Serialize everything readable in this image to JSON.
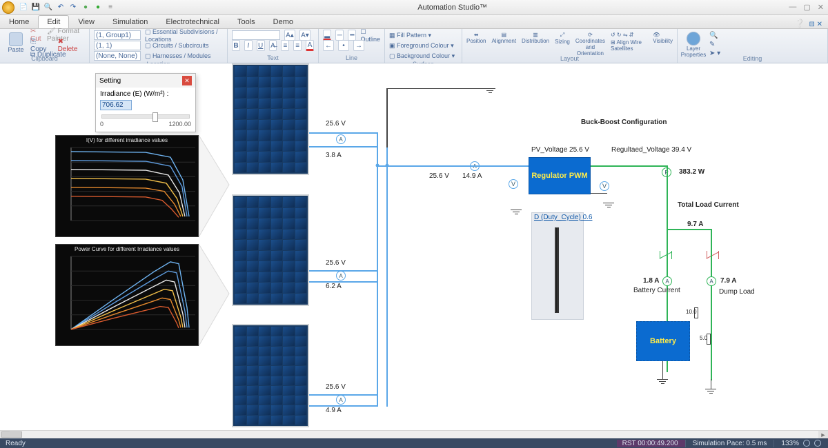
{
  "app": {
    "title": "Automation Studio™"
  },
  "qat": [
    "📄",
    "💾",
    "🔍",
    "↩",
    "↪",
    "•",
    "●",
    "●"
  ],
  "menu": {
    "tabs": [
      "Home",
      "Edit",
      "View",
      "Simulation",
      "Electrotechnical",
      "Tools",
      "Demo"
    ],
    "active": 1
  },
  "ribbon": {
    "clipboard": {
      "paste": "Paste",
      "cut": "Cut",
      "copy": "Copy",
      "delete": "Delete",
      "fmt": "Format Painter",
      "dup": "Duplicate",
      "label": "Clipboard"
    },
    "location": {
      "dd1": "(1, Group1)",
      "dd2": "(1, 1)",
      "dd3": "(None, None)",
      "opt1": "Essential Subdivisions / Locations",
      "opt2": "Circuits / Subcircuits",
      "opt3": "Harnesses / Modules",
      "label": "Location"
    },
    "text": {
      "label": "Text"
    },
    "line": {
      "label": "Line"
    },
    "surface": {
      "fill": "Fill Pattern",
      "fg": "Foreground Colour",
      "bg": "Background Colour",
      "outline": "Outline",
      "label": "Surface"
    },
    "layout": {
      "pos": "Position",
      "align": "Alignment",
      "dist": "Distribution",
      "size": "Sizing",
      "coord": "Coordinates and Orientation",
      "wire": "Align Wire Satellites",
      "vis": "Visibility",
      "label": "Layout"
    },
    "editing": {
      "layer": "Layer Properties",
      "label": "Editing"
    }
  },
  "setting": {
    "title": "Setting",
    "param": "Irradiance (E) (W/m²) :",
    "value": "706.62",
    "min": "0",
    "max": "1200.00"
  },
  "charts": {
    "iv": {
      "title": "I(V) for different irradiance  values",
      "xmax": 30,
      "ymax": 9,
      "series": [
        {
          "color": "#6fb4f2",
          "pts": [
            [
              0,
              8.5
            ],
            [
              18,
              8.4
            ],
            [
              24,
              7.8
            ],
            [
              27,
              5.0
            ],
            [
              28.5,
              0.5
            ]
          ]
        },
        {
          "color": "#5f9de0",
          "pts": [
            [
              0,
              7.4
            ],
            [
              18,
              7.3
            ],
            [
              24,
              6.7
            ],
            [
              26.8,
              4.2
            ],
            [
              28,
              0.5
            ]
          ]
        },
        {
          "color": "#e8e8e8",
          "pts": [
            [
              0,
              6.3
            ],
            [
              18,
              6.2
            ],
            [
              23.5,
              5.6
            ],
            [
              26.2,
              3.4
            ],
            [
              27.5,
              0.5
            ]
          ]
        },
        {
          "color": "#f2c04a",
          "pts": [
            [
              0,
              5.2
            ],
            [
              18,
              5.1
            ],
            [
              23,
              4.6
            ],
            [
              25.6,
              2.7
            ],
            [
              27,
              0.5
            ]
          ]
        },
        {
          "color": "#e68a2e",
          "pts": [
            [
              0,
              4.1
            ],
            [
              18,
              4.0
            ],
            [
              22.5,
              3.6
            ],
            [
              25,
              2.0
            ],
            [
              26.5,
              0.5
            ]
          ]
        },
        {
          "color": "#d85a2e",
          "pts": [
            [
              0,
              3.0
            ],
            [
              18,
              2.9
            ],
            [
              22,
              2.5
            ],
            [
              24.3,
              1.4
            ],
            [
              26,
              0.4
            ]
          ]
        }
      ]
    },
    "pv": {
      "title": "Power Curve for different Irradiance  values",
      "xmax": 30,
      "ymax": 200,
      "series": [
        {
          "color": "#6fb4f2",
          "pts": [
            [
              0,
              0
            ],
            [
              10,
              80
            ],
            [
              20,
              158
            ],
            [
              24,
              185
            ],
            [
              26,
              180
            ],
            [
              28,
              60
            ],
            [
              28.5,
              5
            ]
          ]
        },
        {
          "color": "#5f9de0",
          "pts": [
            [
              0,
              0
            ],
            [
              10,
              70
            ],
            [
              20,
              138
            ],
            [
              23.5,
              160
            ],
            [
              25.5,
              155
            ],
            [
              27.5,
              50
            ],
            [
              28,
              5
            ]
          ]
        },
        {
          "color": "#e8e8e8",
          "pts": [
            [
              0,
              0
            ],
            [
              10,
              60
            ],
            [
              20,
              118
            ],
            [
              23,
              135
            ],
            [
              25,
              130
            ],
            [
              27,
              42
            ],
            [
              27.5,
              5
            ]
          ]
        },
        {
          "color": "#f2c04a",
          "pts": [
            [
              0,
              0
            ],
            [
              10,
              50
            ],
            [
              20,
              98
            ],
            [
              22.5,
              110
            ],
            [
              24.5,
              106
            ],
            [
              26.5,
              34
            ],
            [
              27,
              5
            ]
          ]
        },
        {
          "color": "#e68a2e",
          "pts": [
            [
              0,
              0
            ],
            [
              10,
              40
            ],
            [
              20,
              78
            ],
            [
              22,
              86
            ],
            [
              24,
              82
            ],
            [
              26,
              26
            ],
            [
              26.5,
              5
            ]
          ]
        },
        {
          "color": "#d85a2e",
          "pts": [
            [
              0,
              0
            ],
            [
              10,
              30
            ],
            [
              20,
              58
            ],
            [
              21.5,
              63
            ],
            [
              23.5,
              60
            ],
            [
              25.5,
              18
            ],
            [
              26,
              4
            ]
          ]
        }
      ]
    }
  },
  "diagram": {
    "pv_out": [
      {
        "v": "25.6 V",
        "i": "3.8 A"
      },
      {
        "v": "25.6 V",
        "i": "6.2 A"
      },
      {
        "v": "25.6 V",
        "i": "4.9 A"
      }
    ],
    "bus": {
      "v": "25.6 V",
      "i": "14.9 A"
    },
    "title": "Buck-Boost Configuration",
    "pvv": "PV_Voltage 25.6 V",
    "regv": "Regultaed_Voltage 39.4 V",
    "regulator": "Regulator PWM",
    "duty": "D (Duty_Cycle) 0.6",
    "power": "383.2 W",
    "loadTitle": "Total Load Current",
    "loadI": "9.7 A",
    "batI": "1.8 A",
    "batLbl": "Battery Current",
    "dumpI": "7.9 A",
    "dumpLbl": "Dump Load",
    "r1": "10.0",
    "r2": "5.0",
    "battery": "Battery"
  },
  "status": {
    "ready": "Ready",
    "rst": "RST  00:00:49.200",
    "pace": "Simulation Pace: 0.5 ms",
    "zoom": "133%"
  }
}
